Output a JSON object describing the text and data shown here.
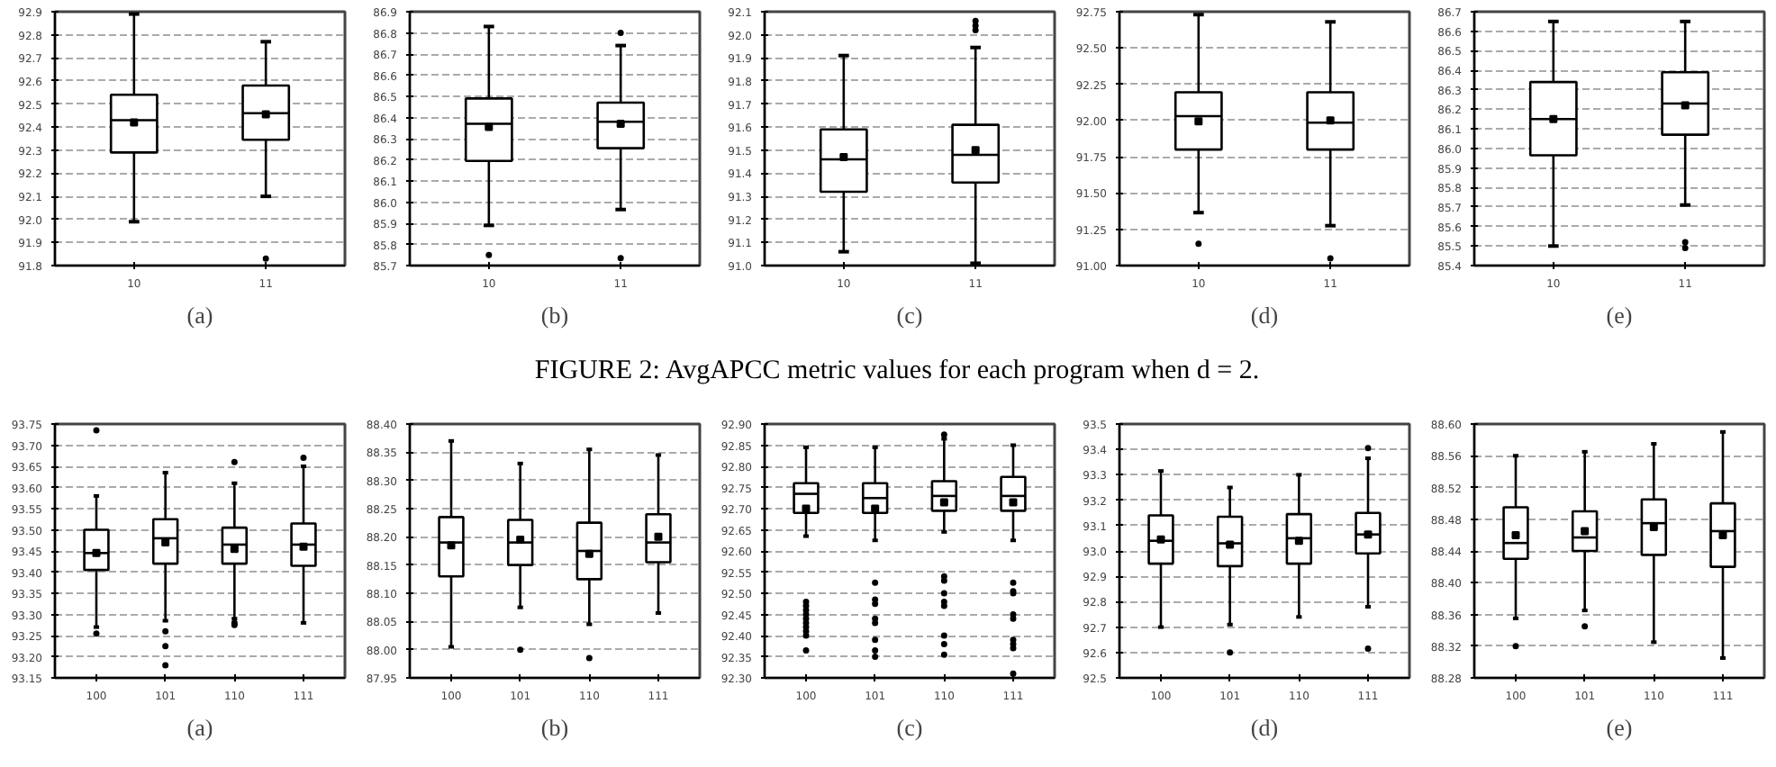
{
  "chart_data": [
    {
      "type": "box",
      "xlabel": "(a)",
      "annotations": [
        "FIGURE 2: AvgAPCC metric values for each program when d = 2."
      ],
      "categories": [
        "10",
        "11"
      ],
      "grid": "y",
      "marker": "square",
      "ylim": [
        91.8,
        92.9
      ],
      "yticks": [
        91.8,
        91.9,
        {
          "value": 92,
          "label": "92.0"
        },
        92.1,
        92.2,
        92.3,
        92.4,
        92.5,
        92.6,
        92.7,
        92.8,
        92.9
      ],
      "boxes": [
        {
          "low": 91.99,
          "q1": 92.29,
          "median": 92.43,
          "q3": 92.54,
          "high": 92.89,
          "mean": 92.42
        },
        {
          "low": 92.1,
          "q1": 92.345,
          "median": 92.46,
          "q3": 92.58,
          "high": 92.77,
          "mean": 92.455,
          "outliers": [
            91.83
          ]
        }
      ]
    },
    {
      "type": "box",
      "xlabel": "(b)",
      "categories": [
        "10",
        "11"
      ],
      "grid": "y",
      "marker": "square",
      "ylim": [
        85.7,
        86.9
      ],
      "yticks": [
        85.7,
        85.8,
        85.9,
        {
          "value": 86,
          "label": "86.0"
        },
        86.1,
        86.2,
        86.3,
        86.4,
        86.5,
        86.6,
        86.7,
        86.8,
        86.9
      ],
      "boxes": [
        {
          "low": 85.89,
          "q1": 86.195,
          "median": 86.37,
          "q3": 86.49,
          "high": 86.83,
          "mean": 86.355,
          "outliers": [
            85.75
          ]
        },
        {
          "low": 85.965,
          "q1": 86.255,
          "median": 86.38,
          "q3": 86.47,
          "high": 86.74,
          "mean": 86.37,
          "outliers": [
            86.8,
            85.735
          ]
        }
      ]
    },
    {
      "type": "box",
      "xlabel": "(c)",
      "categories": [
        "10",
        "11"
      ],
      "grid": "y",
      "marker": "square",
      "ylim": [
        91.0,
        92.1
      ],
      "yticks": [
        {
          "value": 91,
          "label": "91.0"
        },
        91.1,
        91.2,
        91.3,
        91.4,
        91.5,
        91.6,
        91.7,
        91.8,
        91.9,
        {
          "value": 92,
          "label": "92.0"
        },
        92.1
      ],
      "boxes": [
        {
          "low": 91.06,
          "q1": 91.32,
          "median": 91.46,
          "q3": 91.59,
          "high": 91.91,
          "mean": 91.47
        },
        {
          "low": 91.01,
          "q1": 91.36,
          "median": 91.48,
          "q3": 91.61,
          "high": 91.945,
          "mean": 91.5,
          "outliers": [
            92.02,
            92.04,
            92.06
          ]
        }
      ]
    },
    {
      "type": "box",
      "xlabel": "(d)",
      "categories": [
        "10",
        "11"
      ],
      "grid": "y",
      "marker": "square",
      "ylim": [
        91.0,
        92.75
      ],
      "yticks": [
        {
          "value": 91,
          "label": "91.00"
        },
        91.25,
        {
          "value": 91.5,
          "label": "91.50"
        },
        91.75,
        {
          "value": 92,
          "label": "92.00"
        },
        92.25,
        {
          "value": 92.5,
          "label": "92.50"
        },
        92.75
      ],
      "boxes": [
        {
          "low": 91.365,
          "q1": 91.8,
          "median": 92.03,
          "q3": 92.195,
          "high": 92.73,
          "mean": 91.995,
          "outliers": [
            91.15
          ]
        },
        {
          "low": 91.275,
          "q1": 91.8,
          "median": 91.985,
          "q3": 92.195,
          "high": 92.68,
          "mean": 92.0,
          "outliers": [
            91.05
          ]
        }
      ]
    },
    {
      "type": "box",
      "xlabel": "(e)",
      "categories": [
        "10",
        "11"
      ],
      "grid": "y",
      "marker": "square",
      "ylim": [
        85.4,
        86.7
      ],
      "yticks": [
        85.4,
        85.5,
        85.6,
        85.7,
        85.8,
        85.9,
        {
          "value": 86,
          "label": "86.0"
        },
        86.1,
        86.2,
        86.3,
        86.4,
        86.5,
        86.6,
        86.7
      ],
      "boxes": [
        {
          "low": 85.5,
          "q1": 85.965,
          "median": 86.15,
          "q3": 86.34,
          "high": 86.65,
          "mean": 86.15
        },
        {
          "low": 85.71,
          "q1": 86.07,
          "median": 86.23,
          "q3": 86.39,
          "high": 86.65,
          "mean": 86.22,
          "outliers": [
            85.52,
            85.49
          ]
        }
      ]
    },
    {
      "type": "box",
      "xlabel": "(a)",
      "categories": [
        "100",
        "101",
        "110",
        "111"
      ],
      "grid": "y",
      "marker": "square",
      "ylim": [
        93.15,
        93.75
      ],
      "yticks": [
        93.15,
        {
          "value": 93.2,
          "label": "93.20"
        },
        93.25,
        {
          "value": 93.3,
          "label": "93.30"
        },
        93.35,
        {
          "value": 93.4,
          "label": "93.40"
        },
        93.45,
        {
          "value": 93.5,
          "label": "93.50"
        },
        93.55,
        {
          "value": 93.6,
          "label": "93.60"
        },
        93.65,
        {
          "value": 93.7,
          "label": "93.70"
        },
        93.75
      ],
      "boxes": [
        {
          "low": 93.27,
          "q1": 93.405,
          "median": 93.445,
          "q3": 93.5,
          "high": 93.58,
          "mean": 93.445,
          "outliers": [
            93.735,
            93.255
          ]
        },
        {
          "low": 93.285,
          "q1": 93.42,
          "median": 93.48,
          "q3": 93.525,
          "high": 93.635,
          "mean": 93.47,
          "outliers": [
            93.26,
            93.225,
            93.18
          ]
        },
        {
          "low": 93.29,
          "q1": 93.42,
          "median": 93.465,
          "q3": 93.505,
          "high": 93.61,
          "mean": 93.455,
          "outliers": [
            93.66,
            93.28,
            93.275
          ]
        },
        {
          "low": 93.28,
          "q1": 93.415,
          "median": 93.465,
          "q3": 93.515,
          "high": 93.65,
          "mean": 93.46,
          "outliers": [
            93.67
          ]
        }
      ]
    },
    {
      "type": "box",
      "xlabel": "(b)",
      "categories": [
        "100",
        "101",
        "110",
        "111"
      ],
      "grid": "y",
      "marker": "square",
      "ylim": [
        87.95,
        88.4
      ],
      "yticks": [
        87.95,
        {
          "value": 88,
          "label": "88.00"
        },
        88.05,
        {
          "value": 88.1,
          "label": "88.10"
        },
        88.15,
        {
          "value": 88.2,
          "label": "88.20"
        },
        88.25,
        {
          "value": 88.3,
          "label": "88.30"
        },
        88.35,
        {
          "value": 88.4,
          "label": "88.40"
        }
      ],
      "boxes": [
        {
          "low": 88.005,
          "q1": 88.13,
          "median": 88.19,
          "q3": 88.235,
          "high": 88.37,
          "mean": 88.185
        },
        {
          "low": 88.075,
          "q1": 88.15,
          "median": 88.19,
          "q3": 88.23,
          "high": 88.33,
          "mean": 88.195,
          "outliers": [
            88.0
          ]
        },
        {
          "low": 88.045,
          "q1": 88.125,
          "median": 88.175,
          "q3": 88.225,
          "high": 88.355,
          "mean": 88.17,
          "outliers": [
            87.985
          ]
        },
        {
          "low": 88.065,
          "q1": 88.155,
          "median": 88.19,
          "q3": 88.24,
          "high": 88.345,
          "mean": 88.2
        }
      ]
    },
    {
      "type": "box",
      "xlabel": "(c)",
      "categories": [
        "100",
        "101",
        "110",
        "111"
      ],
      "grid": "y",
      "marker": "square",
      "ylim": [
        92.3,
        92.9
      ],
      "yticks": [
        {
          "value": 92.3,
          "label": "92.30"
        },
        92.35,
        {
          "value": 92.4,
          "label": "92.40"
        },
        92.45,
        {
          "value": 92.5,
          "label": "92.50"
        },
        92.55,
        {
          "value": 92.6,
          "label": "92.60"
        },
        92.65,
        {
          "value": 92.7,
          "label": "92.70"
        },
        92.75,
        {
          "value": 92.8,
          "label": "92.80"
        },
        92.85,
        {
          "value": 92.9,
          "label": "92.90"
        }
      ],
      "boxes": [
        {
          "low": 92.635,
          "q1": 92.69,
          "median": 92.735,
          "q3": 92.76,
          "high": 92.845,
          "mean": 92.7,
          "outliers": [
            92.48,
            92.47,
            92.46,
            92.45,
            92.44,
            92.43,
            92.42,
            92.41,
            92.4,
            92.365
          ]
        },
        {
          "low": 92.625,
          "q1": 92.69,
          "median": 92.725,
          "q3": 92.76,
          "high": 92.845,
          "mean": 92.7,
          "outliers": [
            92.525,
            92.485,
            92.475,
            92.44,
            92.43,
            92.39,
            92.365,
            92.35
          ]
        },
        {
          "low": 92.645,
          "q1": 92.695,
          "median": 92.73,
          "q3": 92.765,
          "high": 92.865,
          "mean": 92.715,
          "outliers": [
            92.875,
            92.54,
            92.53,
            92.5,
            92.48,
            92.47,
            92.4,
            92.38,
            92.355
          ]
        },
        {
          "low": 92.625,
          "q1": 92.695,
          "median": 92.73,
          "q3": 92.775,
          "high": 92.85,
          "mean": 92.715,
          "outliers": [
            92.525,
            92.505,
            92.5,
            92.45,
            92.44,
            92.39,
            92.38,
            92.37,
            92.31
          ]
        }
      ]
    },
    {
      "type": "box",
      "xlabel": "(d)",
      "categories": [
        "100",
        "101",
        "110",
        "111"
      ],
      "grid": "y",
      "marker": "square",
      "ylim": [
        92.5,
        93.5
      ],
      "yticks": [
        92.5,
        92.6,
        92.7,
        92.8,
        92.9,
        {
          "value": 93,
          "label": "93.0"
        },
        93.1,
        93.2,
        93.3,
        93.4,
        93.5
      ],
      "boxes": [
        {
          "low": 92.7,
          "q1": 92.95,
          "median": 93.04,
          "q3": 93.14,
          "high": 93.315,
          "mean": 93.045
        },
        {
          "low": 92.71,
          "q1": 92.94,
          "median": 93.03,
          "q3": 93.135,
          "high": 93.25,
          "mean": 93.025,
          "outliers": [
            92.6
          ]
        },
        {
          "low": 92.74,
          "q1": 92.95,
          "median": 93.05,
          "q3": 93.145,
          "high": 93.3,
          "mean": 93.04
        },
        {
          "low": 92.78,
          "q1": 92.99,
          "median": 93.065,
          "q3": 93.15,
          "high": 93.365,
          "mean": 93.065,
          "outliers": [
            93.405,
            92.615
          ]
        }
      ]
    },
    {
      "type": "box",
      "xlabel": "(e)",
      "categories": [
        "100",
        "101",
        "110",
        "111"
      ],
      "grid": "y",
      "marker": "square",
      "ylim": [
        88.28,
        88.6
      ],
      "yticks": [
        88.28,
        88.32,
        88.36,
        {
          "value": 88.4,
          "label": "88.40"
        },
        88.44,
        88.48,
        88.52,
        88.56,
        {
          "value": 88.6,
          "label": "88.60"
        }
      ],
      "boxes": [
        {
          "low": 88.355,
          "q1": 88.43,
          "median": 88.45,
          "q3": 88.495,
          "high": 88.56,
          "mean": 88.46,
          "outliers": [
            88.32
          ]
        },
        {
          "low": 88.365,
          "q1": 88.44,
          "median": 88.457,
          "q3": 88.49,
          "high": 88.565,
          "mean": 88.465,
          "outliers": [
            88.345
          ]
        },
        {
          "low": 88.325,
          "q1": 88.435,
          "median": 88.475,
          "q3": 88.505,
          "high": 88.575,
          "mean": 88.47
        },
        {
          "low": 88.305,
          "q1": 88.42,
          "median": 88.465,
          "q3": 88.5,
          "high": 88.59,
          "mean": 88.46
        }
      ]
    }
  ]
}
